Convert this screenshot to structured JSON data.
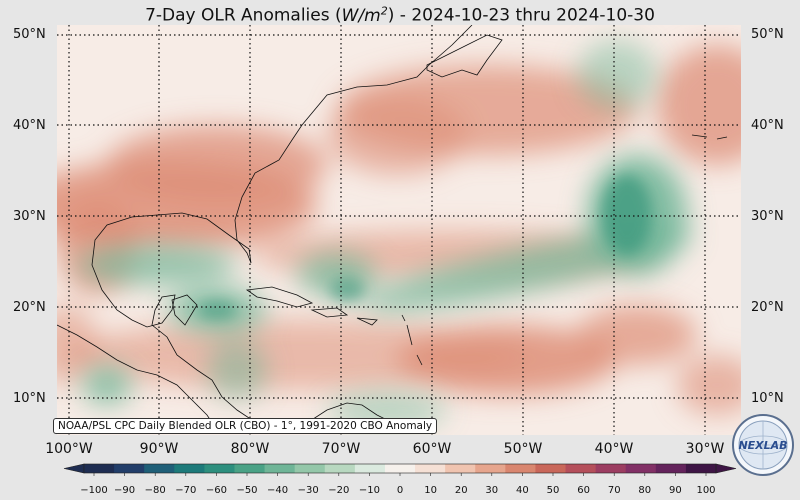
{
  "title": {
    "prefix": "7-Day OLR Anomalies (",
    "unit_base": "W/m",
    "unit_exp": "2",
    "suffix": ") - 2024-10-23 thru 2024-10-30"
  },
  "lat_labels": [
    "50°N",
    "40°N",
    "30°N",
    "20°N",
    "10°N"
  ],
  "lon_labels": [
    "100°W",
    "90°W",
    "80°W",
    "70°W",
    "60°W",
    "50°W",
    "40°W",
    "30°W"
  ],
  "credit": "NOAA/PSL CPC Daily Blended OLR (CBO) - 1°, 1991-2020 CBO Anomaly",
  "logo_text": "NEXLAB",
  "colorbar": {
    "ticks": [
      "−100",
      "−90",
      "−80",
      "−70",
      "−60",
      "−50",
      "−40",
      "−30",
      "−20",
      "−10",
      "0",
      "10",
      "20",
      "30",
      "40",
      "50",
      "60",
      "70",
      "80",
      "90",
      "100"
    ],
    "colors": [
      "#1e2d52",
      "#223e6a",
      "#1f5f78",
      "#1d7a7a",
      "#2d8f7e",
      "#4aa286",
      "#6fb597",
      "#94c7a9",
      "#b8d8c0",
      "#dbeadf",
      "#f6f1ec",
      "#f5e0d5",
      "#f0c4b0",
      "#e6a58d",
      "#d9866f",
      "#c9675a",
      "#b54f5b",
      "#9c3d61",
      "#823066",
      "#64235c",
      "#3e1545"
    ]
  },
  "map_colors": {
    "background": "#f7ece6",
    "neutral": "#f3efe9",
    "positive": "#de8f78",
    "negative": "#6fb597",
    "strong_negative": "#3f9a7e"
  }
}
